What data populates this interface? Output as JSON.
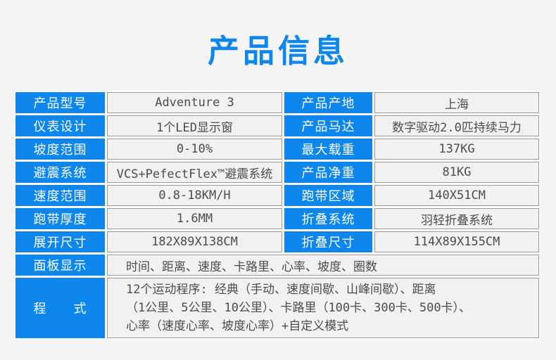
{
  "page": {
    "title": "产品信息",
    "accent_color": "#0d86ee",
    "background_color": "#f5f5f5"
  },
  "table": {
    "label_background": "#0d86ee",
    "value_border_color": "#999999",
    "rows": [
      {
        "left_label": "产品型号",
        "left_value": "Adventure 3",
        "right_label": "产品产地",
        "right_value": "上海"
      },
      {
        "left_label": "仪表设计",
        "left_value": "1个LED显示窗",
        "right_label": "产品马达",
        "right_value": "数字驱动2.0匹持续马力"
      },
      {
        "left_label": "坡度范围",
        "left_value": "0-10%",
        "right_label": "最大载重",
        "right_value": "137KG"
      },
      {
        "left_label": "避震系统",
        "left_value": "VCS+PefectFlex™避震系统",
        "right_label": "产品净重",
        "right_value": "81KG"
      },
      {
        "left_label": "速度范围",
        "left_value": "0.8-18KM/H",
        "right_label": "跑带区域",
        "right_value": "140X51CM"
      },
      {
        "left_label": "跑带厚度",
        "left_value": "1.6MM",
        "right_label": "折叠系统",
        "right_value": "羽轻折叠系统"
      },
      {
        "left_label": "展开尺寸",
        "left_value": "182X89X138CM",
        "right_label": "折叠尺寸",
        "right_value": "114X89X155CM"
      }
    ],
    "full_rows": [
      {
        "label": "面板显示",
        "value": "时间、距离、速度、卡路里、心率、坡度、圈数"
      },
      {
        "label": "程　　式",
        "value_lines": [
          "12个运动程序: 经典（手动、速度间歇、山峰间歇）、距离",
          "（1公里、5公里、10公里）、卡路里（100卡、300卡、500卡）、",
          "心率（速度心率、坡度心率）+自定义模式"
        ]
      }
    ]
  }
}
